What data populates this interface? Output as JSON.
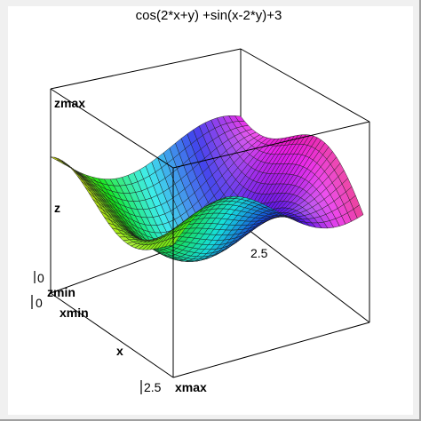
{
  "chart_data": {
    "type": "surface",
    "title": "cos(2*x+y) +sin(x-2*y)+3",
    "function": "cos(2*x+y) +sin(x-2*y)+3",
    "xlabel": "x",
    "zlabel": "z",
    "x_min_label": "xmin",
    "x_max_label": "xmax",
    "z_min_label": "zmin",
    "z_max_label": "zmax",
    "xlim": [
      0,
      2.5
    ],
    "ylim": [
      0,
      2.5
    ],
    "zlim": [
      0,
      6
    ],
    "ticks": {
      "x_start": "0",
      "x_end": "2.5",
      "y_start": "0",
      "y_end": "2.5",
      "z_start": "0"
    }
  }
}
